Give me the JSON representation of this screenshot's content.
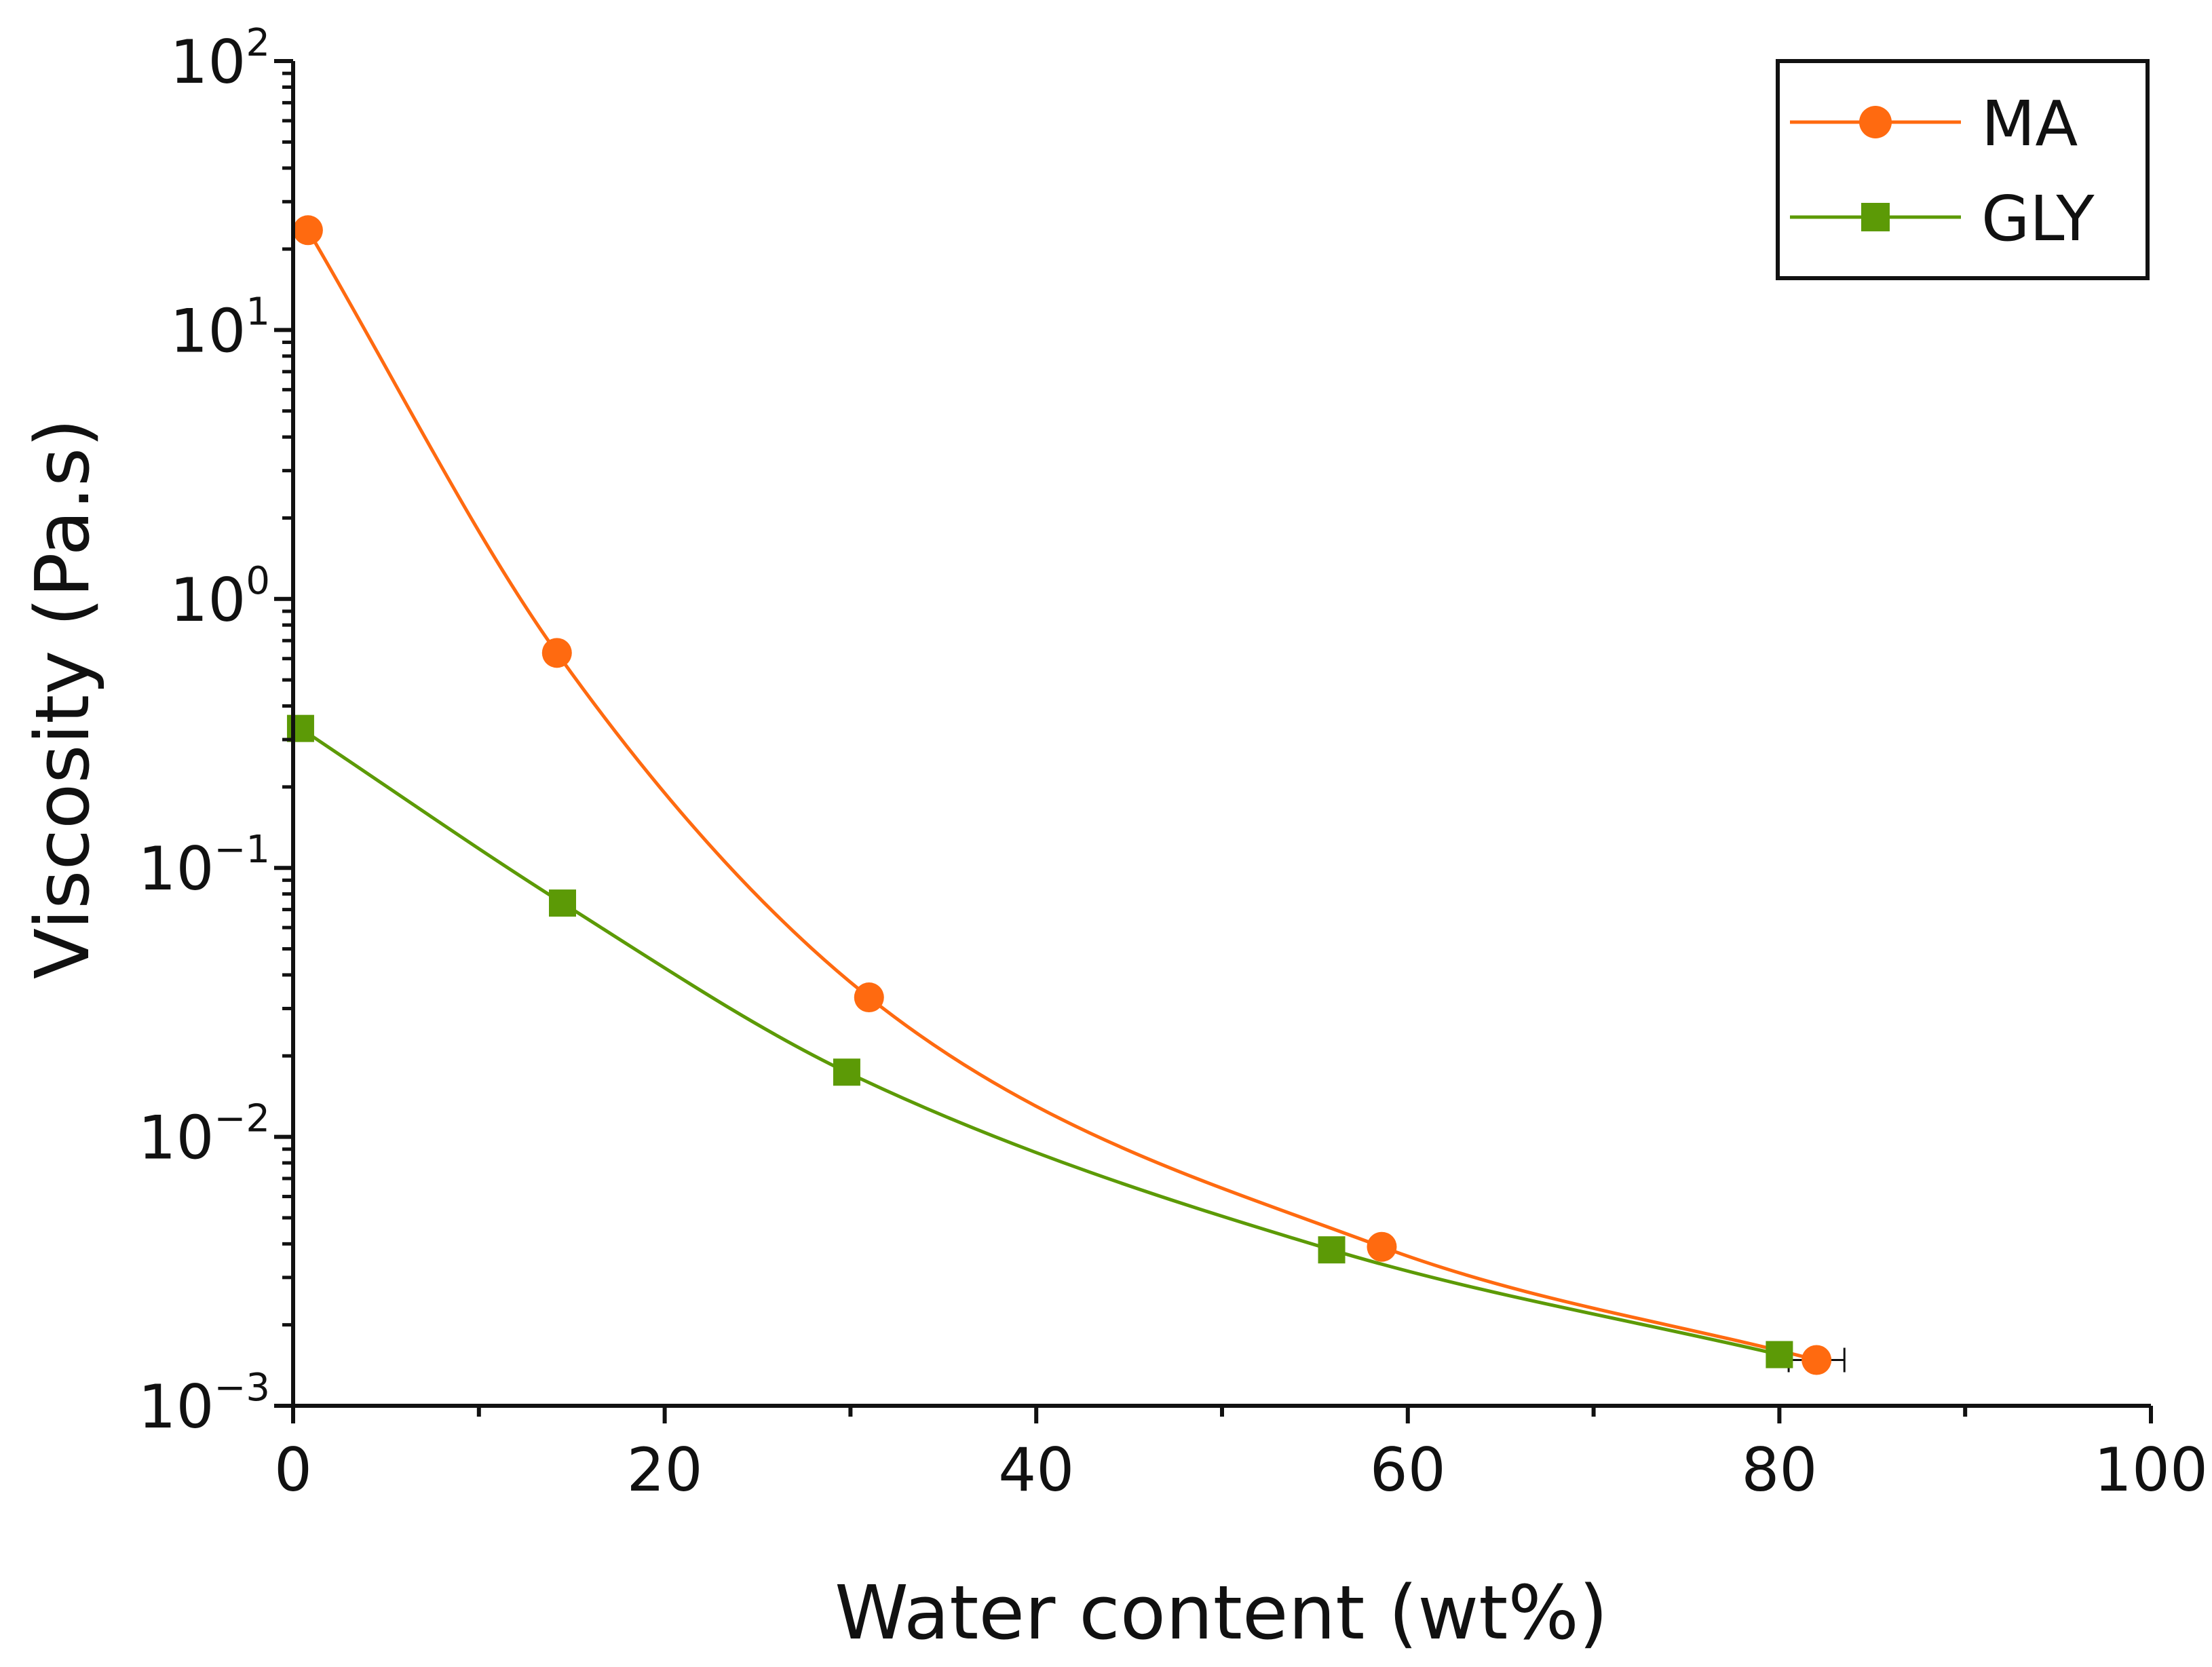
{
  "chart_data": {
    "type": "line",
    "title": "",
    "xlabel": "Water content (wt%)",
    "ylabel": "Viscosity (Pa.s)",
    "xlim": [
      0,
      100
    ],
    "ylim": [
      0.001,
      100
    ],
    "yscale": "log",
    "x_ticks": [
      {
        "value": 0,
        "label": "0"
      },
      {
        "value": 20,
        "label": "20"
      },
      {
        "value": 40,
        "label": "40"
      },
      {
        "value": 60,
        "label": "60"
      },
      {
        "value": 80,
        "label": "80"
      },
      {
        "value": 100,
        "label": "100"
      }
    ],
    "y_ticks": [
      {
        "value": 0.001,
        "base": "10",
        "exp": "−3"
      },
      {
        "value": 0.01,
        "base": "10",
        "exp": "−2"
      },
      {
        "value": 0.1,
        "base": "10",
        "exp": "−1"
      },
      {
        "value": 1,
        "base": "10",
        "exp": "0"
      },
      {
        "value": 10,
        "base": "10",
        "exp": "1"
      },
      {
        "value": 100,
        "base": "10",
        "exp": "2"
      }
    ],
    "legend_position": "top-right",
    "series": [
      {
        "name": "MA",
        "color": "#ff6a10",
        "marker": "circle",
        "x": [
          0.8,
          14.2,
          31.0,
          58.6,
          82.0
        ],
        "y": [
          23.5,
          0.63,
          0.033,
          0.0039,
          0.00148
        ],
        "xerr": [
          0,
          0,
          0,
          0,
          1.5
        ]
      },
      {
        "name": "GLY",
        "color": "#5c9a06",
        "marker": "square",
        "x": [
          0.4,
          14.5,
          29.8,
          55.9,
          80.0
        ],
        "y": [
          0.33,
          0.074,
          0.0174,
          0.0038,
          0.00155
        ],
        "xerr": [
          0,
          0,
          0,
          0,
          0
        ]
      }
    ]
  }
}
